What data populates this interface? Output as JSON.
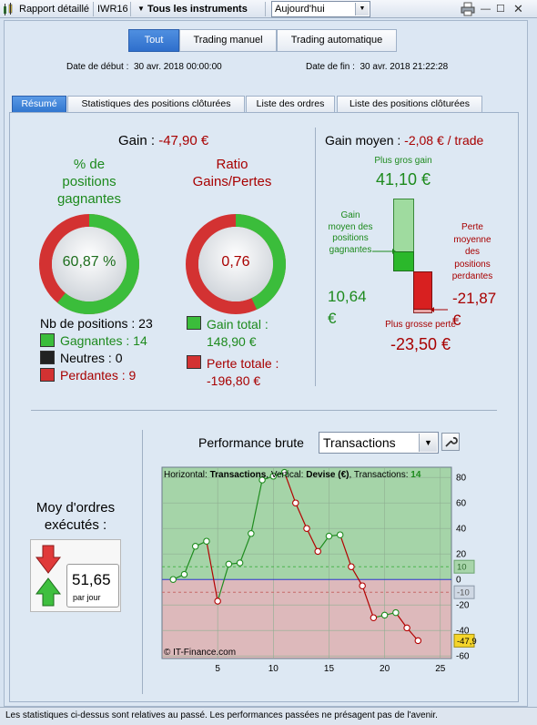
{
  "toolbar": {
    "report": "Rapport détaillé",
    "account": "IWR16",
    "instruments": "Tous les instruments",
    "period": "Aujourd'hui"
  },
  "filters": [
    "Tout",
    "Trading manuel",
    "Trading automatique"
  ],
  "dates": {
    "start_label": "Date de début :",
    "start": "30 avr. 2018 00:00:00",
    "end_label": "Date de fin :",
    "end": "30 avr. 2018 21:22:28"
  },
  "tabs": [
    "Résumé",
    "Statistiques des positions clôturées",
    "Liste des ordres",
    "Liste des positions clôturées"
  ],
  "summary": {
    "gain_label": "Gain :",
    "gain": "-47,90 €",
    "win_pct_title": [
      "% de",
      "positions",
      "gagnantes"
    ],
    "win_pct": "60,87 %",
    "win_fraction": 0.6087,
    "ratio_title": [
      "Ratio",
      "Gains/Pertes"
    ],
    "ratio": "0,76",
    "ratio_fraction": 0.43,
    "nb_positions": "Nb de positions : 23",
    "winning": "Gagnantes : 14",
    "neutral": "Neutres : 0",
    "losing": "Perdantes : 9",
    "total_gain_label": "Gain total :",
    "total_gain": "148,90 €",
    "total_loss_label": "Perte totale :",
    "total_loss": "-196,80 €"
  },
  "avg": {
    "label": "Gain moyen :",
    "value": "-2,08 € / trade",
    "best_label": "Plus gros gain",
    "best": "41,10 €",
    "avg_win_label": [
      "Gain",
      "moyen des",
      "positions",
      "gagnantes"
    ],
    "avg_win": "10,64",
    "avg_win_unit": "€",
    "avg_loss_label": [
      "Perte",
      "moyenne",
      "des",
      "positions",
      "perdantes"
    ],
    "avg_loss": "-21,87",
    "avg_loss_unit": "€",
    "worst_label": "Plus grosse perte",
    "worst": "-23,50 €"
  },
  "orders": {
    "title": [
      "Moy d'ordres",
      "exécutés :"
    ],
    "value": "51,65",
    "unit": "par jour"
  },
  "perf": {
    "title": "Performance brute",
    "select": "Transactions",
    "header_h_label": "Horizontal:",
    "header_h": "Transactions",
    "header_v_label": ", Vertical:",
    "header_v": "Devise (€)",
    "header_t_label": ", Transactions:",
    "header_t": "14",
    "credit": "© IT-Finance.com",
    "badge_pos": "10",
    "badge_neg": "-10",
    "badge_last": "-47,9"
  },
  "chart_data": {
    "type": "line",
    "x": [
      1,
      2,
      3,
      4,
      5,
      6,
      7,
      8,
      9,
      10,
      11,
      12,
      13,
      14,
      15,
      16,
      17,
      18,
      19,
      20,
      21,
      22,
      23
    ],
    "series": [
      {
        "values": [
          0,
          4,
          26,
          30,
          -17,
          12,
          13,
          36,
          78,
          81,
          84,
          60,
          40,
          22,
          34,
          35,
          10,
          -5,
          -30,
          -28,
          -26,
          -38,
          -48
        ]
      }
    ],
    "xlim": [
      0,
      26
    ],
    "ylim": [
      -62,
      88
    ],
    "xticks": [
      5,
      10,
      15,
      20,
      25
    ],
    "yticks": [
      80,
      60,
      40,
      20,
      0,
      -20,
      -40,
      -60
    ],
    "positive_color": "#1f8c1f",
    "negative_color": "#b30000"
  },
  "footer": "Les statistiques ci-dessus sont relatives au passé. Les performances passées ne présagent pas de l'avenir."
}
